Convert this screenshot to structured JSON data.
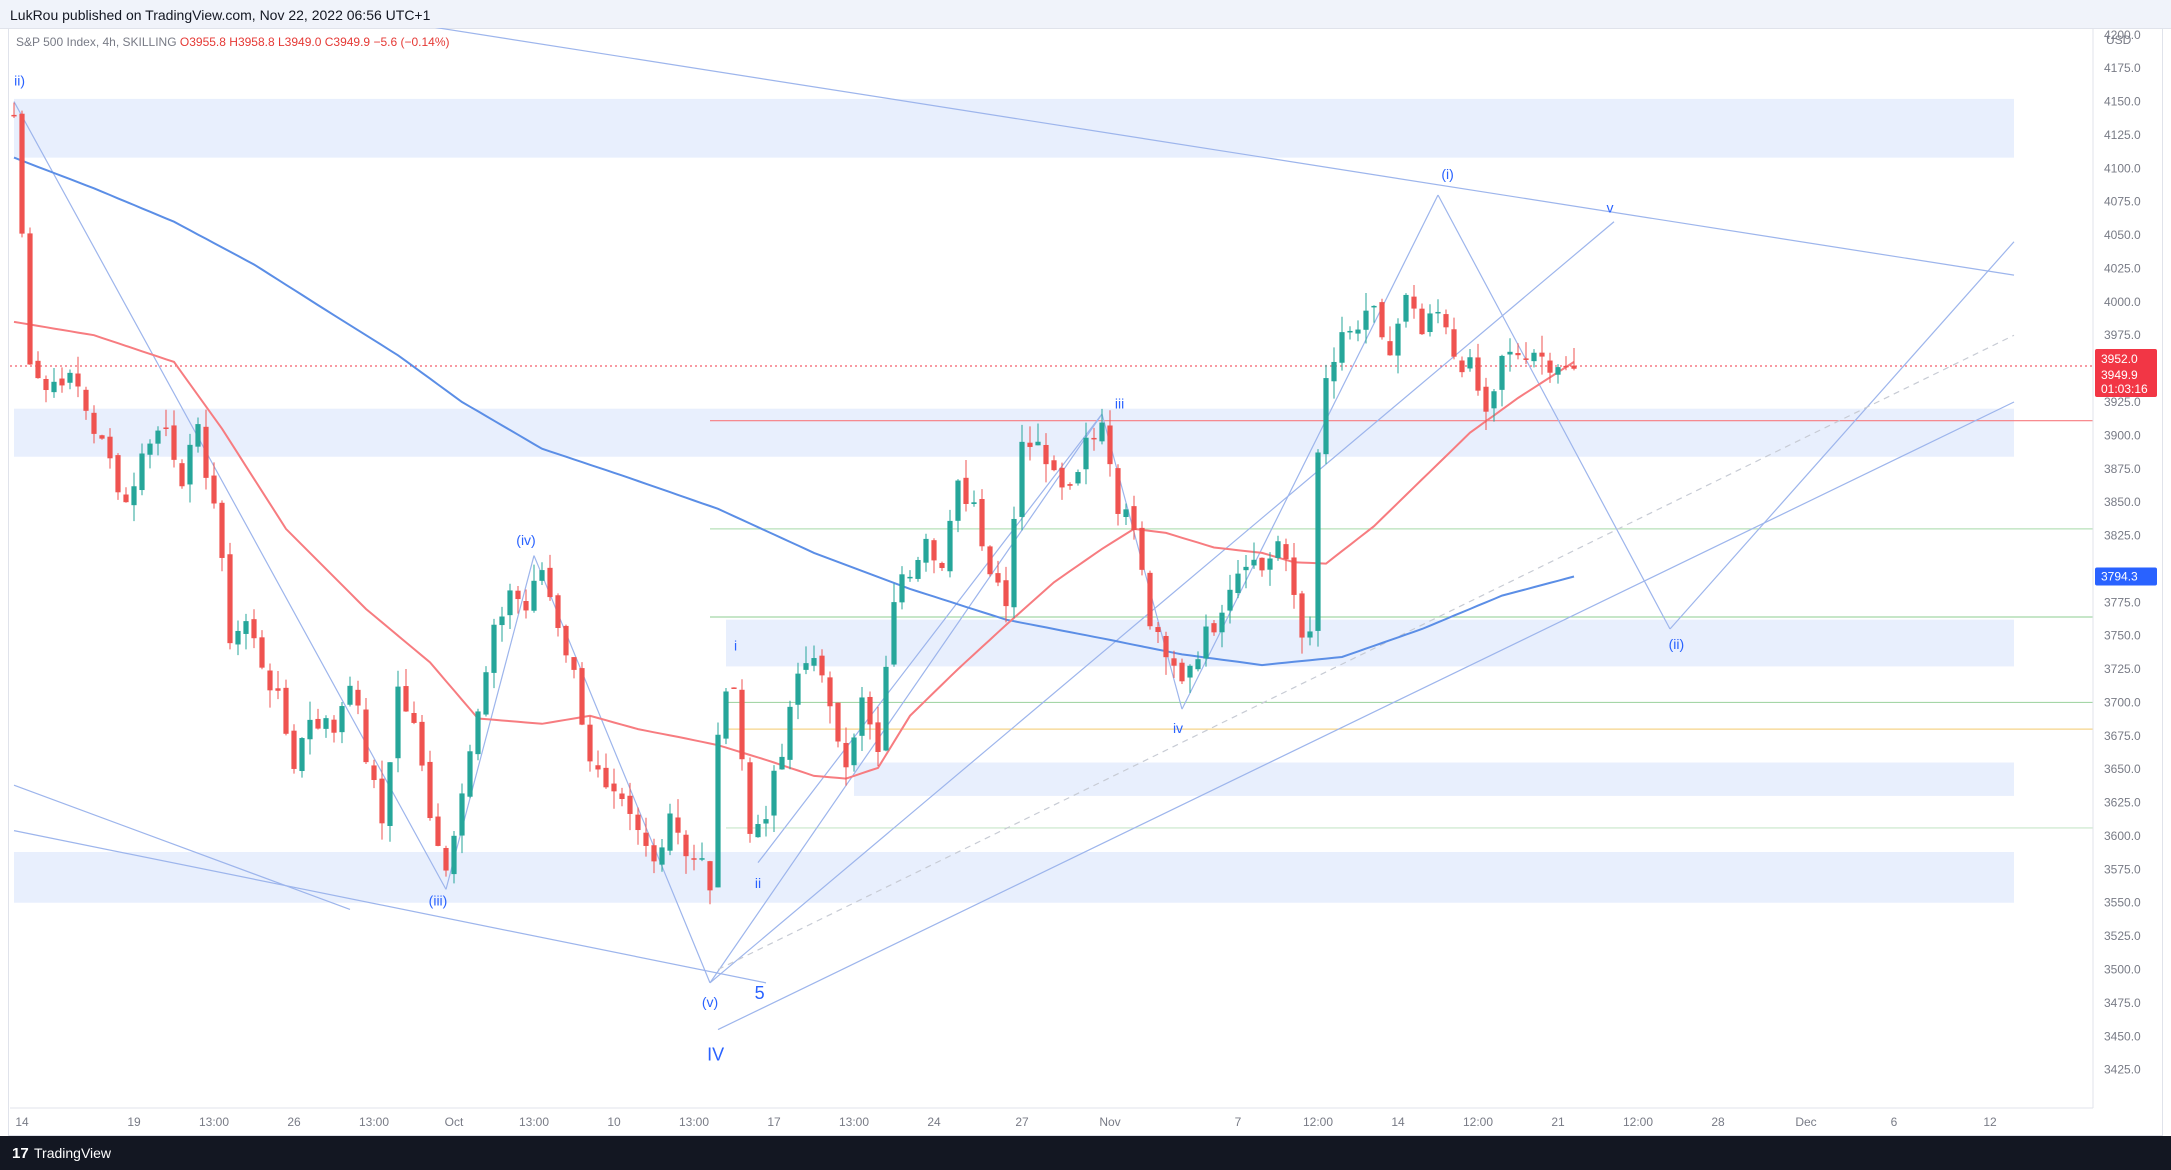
{
  "header": {
    "publisher": "LukRou published on TradingView.com, Nov 22, 2022 06:56 UTC+1"
  },
  "legend": {
    "symbol": "S&P 500 Index, 4h, SKILLING",
    "open": "O3955.8",
    "high": "H3958.8",
    "low": "L3949.0",
    "close": "C3949.9",
    "change": "−5.6 (−0.14%)"
  },
  "footer": {
    "logo_glyph": "17",
    "brand": "TradingView"
  },
  "colors": {
    "up": "#26a69a",
    "down": "#ef5350",
    "ema_fast": "#f77c80",
    "ema_slow": "#5b8ee6",
    "zone": "#e8effd",
    "lines": "#9db5ec",
    "labels": "#2962ff",
    "price_tag": "#f23645",
    "ma_tag": "#2962ff"
  },
  "chart_data": {
    "type": "candlestick",
    "title": "",
    "currency": "USD",
    "ylim": [
      3415,
      4245
    ],
    "y_ticks": [
      "4200.0",
      "4175.0",
      "4150.0",
      "4125.0",
      "4100.0",
      "4075.0",
      "4050.0",
      "4025.0",
      "4000.0",
      "3975.0",
      "3925.0",
      "3900.0",
      "3875.0",
      "3850.0",
      "3825.0",
      "3775.0",
      "3750.0",
      "3725.0",
      "3700.0",
      "3675.0",
      "3650.0",
      "3625.0",
      "3600.0",
      "3575.0",
      "3550.0",
      "3525.0",
      "3500.0",
      "3475.0",
      "3450.0",
      "3425.0"
    ],
    "x_ticks": [
      {
        "label": "14",
        "i": 1
      },
      {
        "label": "19",
        "i": 15
      },
      {
        "label": "13:00",
        "i": 25
      },
      {
        "label": "26",
        "i": 35
      },
      {
        "label": "13:00",
        "i": 45
      },
      {
        "label": "Oct",
        "i": 55
      },
      {
        "label": "13:00",
        "i": 65
      },
      {
        "label": "10",
        "i": 75
      },
      {
        "label": "13:00",
        "i": 85
      },
      {
        "label": "17",
        "i": 95
      },
      {
        "label": "13:00",
        "i": 105
      },
      {
        "label": "24",
        "i": 115
      },
      {
        "label": "27",
        "i": 126
      },
      {
        "label": "Nov",
        "i": 137
      },
      {
        "label": "7",
        "i": 153
      },
      {
        "label": "12:00",
        "i": 163
      },
      {
        "label": "14",
        "i": 173
      },
      {
        "label": "12:00",
        "i": 183
      },
      {
        "label": "21",
        "i": 193
      },
      {
        "label": "12:00",
        "i": 203
      },
      {
        "label": "28",
        "i": 213
      },
      {
        "label": "Dec",
        "i": 224
      },
      {
        "label": "6",
        "i": 235
      },
      {
        "label": "12",
        "i": 247
      }
    ],
    "current_price": {
      "price": "3952.0",
      "close": "3949.9",
      "countdown": "01:03:16",
      "value": 3952
    },
    "ma_value": {
      "label": "3794.3",
      "value": 3794.3
    },
    "waypoints": [
      [
        0,
        4140
      ],
      [
        1,
        4050
      ],
      [
        2,
        3960
      ],
      [
        4,
        3935
      ],
      [
        6,
        3945
      ],
      [
        8,
        3935
      ],
      [
        10,
        3905
      ],
      [
        12,
        3880
      ],
      [
        14,
        3850
      ],
      [
        17,
        3900
      ],
      [
        19,
        3905
      ],
      [
        21,
        3870
      ],
      [
        23,
        3900
      ],
      [
        25,
        3850
      ],
      [
        27,
        3750
      ],
      [
        29,
        3760
      ],
      [
        31,
        3730
      ],
      [
        33,
        3700
      ],
      [
        35,
        3655
      ],
      [
        37,
        3690
      ],
      [
        40,
        3680
      ],
      [
        42,
        3720
      ],
      [
        44,
        3660
      ],
      [
        46,
        3610
      ],
      [
        48,
        3710
      ],
      [
        50,
        3680
      ],
      [
        52,
        3620
      ],
      [
        54,
        3575
      ],
      [
        56,
        3640
      ],
      [
        58,
        3690
      ],
      [
        60,
        3750
      ],
      [
        62,
        3785
      ],
      [
        64,
        3770
      ],
      [
        66,
        3800
      ],
      [
        68,
        3760
      ],
      [
        70,
        3720
      ],
      [
        72,
        3660
      ],
      [
        74,
        3630
      ],
      [
        76,
        3620
      ],
      [
        78,
        3600
      ],
      [
        80,
        3580
      ],
      [
        82,
        3620
      ],
      [
        84,
        3590
      ],
      [
        86,
        3580
      ],
      [
        87,
        3555
      ],
      [
        88,
        3680
      ],
      [
        90,
        3720
      ],
      [
        92,
        3600
      ],
      [
        94,
        3620
      ],
      [
        96,
        3660
      ],
      [
        98,
        3720
      ],
      [
        100,
        3740
      ],
      [
        102,
        3690
      ],
      [
        104,
        3660
      ],
      [
        106,
        3700
      ],
      [
        108,
        3660
      ],
      [
        110,
        3780
      ],
      [
        112,
        3800
      ],
      [
        114,
        3830
      ],
      [
        116,
        3800
      ],
      [
        118,
        3860
      ],
      [
        120,
        3850
      ],
      [
        122,
        3800
      ],
      [
        124,
        3780
      ],
      [
        126,
        3900
      ],
      [
        128,
        3890
      ],
      [
        130,
        3880
      ],
      [
        132,
        3860
      ],
      [
        134,
        3900
      ],
      [
        136,
        3910
      ],
      [
        138,
        3850
      ],
      [
        140,
        3830
      ],
      [
        142,
        3760
      ],
      [
        144,
        3730
      ],
      [
        146,
        3720
      ],
      [
        148,
        3740
      ],
      [
        150,
        3760
      ],
      [
        152,
        3790
      ],
      [
        154,
        3810
      ],
      [
        156,
        3800
      ],
      [
        158,
        3820
      ],
      [
        160,
        3780
      ],
      [
        161,
        3750
      ],
      [
        162,
        3760
      ],
      [
        163,
        3880
      ],
      [
        164,
        3940
      ],
      [
        166,
        3970
      ],
      [
        168,
        3980
      ],
      [
        170,
        3990
      ],
      [
        172,
        3960
      ],
      [
        174,
        4000
      ],
      [
        176,
        3975
      ],
      [
        178,
        3990
      ],
      [
        180,
        3960
      ],
      [
        182,
        3950
      ],
      [
        184,
        3915
      ],
      [
        186,
        3955
      ],
      [
        188,
        3960
      ],
      [
        190,
        3955
      ],
      [
        192,
        3955
      ],
      [
        194,
        3952
      ],
      [
        195,
        3950
      ]
    ],
    "ema_fast": [
      [
        0,
        3985
      ],
      [
        10,
        3975
      ],
      [
        20,
        3955
      ],
      [
        26,
        3905
      ],
      [
        34,
        3830
      ],
      [
        44,
        3770
      ],
      [
        52,
        3730
      ],
      [
        58,
        3688
      ],
      [
        66,
        3684
      ],
      [
        72,
        3690
      ],
      [
        78,
        3680
      ],
      [
        84,
        3673
      ],
      [
        88,
        3668
      ],
      [
        94,
        3657
      ],
      [
        100,
        3645
      ],
      [
        104,
        3643
      ],
      [
        108,
        3651
      ],
      [
        112,
        3690
      ],
      [
        118,
        3725
      ],
      [
        124,
        3758
      ],
      [
        130,
        3790
      ],
      [
        136,
        3815
      ],
      [
        140,
        3830
      ],
      [
        144,
        3827
      ],
      [
        150,
        3816
      ],
      [
        156,
        3812
      ],
      [
        160,
        3805
      ],
      [
        164,
        3804
      ],
      [
        170,
        3832
      ],
      [
        176,
        3867
      ],
      [
        182,
        3902
      ],
      [
        188,
        3928
      ],
      [
        195,
        3955
      ]
    ],
    "ema_slow": [
      [
        0,
        4108
      ],
      [
        10,
        4085
      ],
      [
        20,
        4060
      ],
      [
        30,
        4028
      ],
      [
        40,
        3990
      ],
      [
        48,
        3960
      ],
      [
        56,
        3925
      ],
      [
        66,
        3890
      ],
      [
        76,
        3870
      ],
      [
        88,
        3845
      ],
      [
        100,
        3812
      ],
      [
        112,
        3785
      ],
      [
        124,
        3762
      ],
      [
        136,
        3748
      ],
      [
        146,
        3736
      ],
      [
        156,
        3728
      ],
      [
        166,
        3734
      ],
      [
        176,
        3755
      ],
      [
        186,
        3780
      ],
      [
        195,
        3794.3
      ]
    ],
    "zones": [
      [
        0,
        250,
        4108,
        4152
      ],
      [
        0,
        250,
        3884,
        3920
      ],
      [
        89,
        250,
        3727,
        3762
      ],
      [
        105,
        250,
        3630,
        3655
      ],
      [
        0,
        250,
        3550,
        3588
      ]
    ],
    "hlines": [
      {
        "i0": 87,
        "price": 3911,
        "color": "#f77c80"
      },
      {
        "i0": 87,
        "price": 3830,
        "color": "#b7e0b9"
      },
      {
        "i0": 87,
        "price": 3764,
        "color": "#a5d6a7"
      },
      {
        "i0": 89,
        "price": 3700,
        "color": "#a5d6a7"
      },
      {
        "i0": 89,
        "price": 3680,
        "color": "#f5d48a"
      },
      {
        "i0": 89,
        "price": 3606,
        "color": "#c8e6c9"
      }
    ],
    "lines": [
      [
        0,
        4255,
        250,
        4020
      ],
      [
        0,
        3638,
        42,
        3545
      ],
      [
        0,
        3604,
        94,
        3490
      ],
      [
        88,
        3455,
        250,
        3925
      ],
      [
        87,
        3490,
        200,
        4060
      ],
      [
        87,
        3490,
        136,
        3916
      ],
      [
        136,
        3916,
        146,
        3695
      ],
      [
        146,
        3695,
        178,
        4080
      ],
      [
        178,
        4080,
        207,
        3755
      ],
      [
        207,
        3755,
        250,
        4045
      ],
      [
        0,
        4150,
        54,
        3560
      ],
      [
        54,
        3560,
        65,
        3810
      ],
      [
        65,
        3810,
        87,
        3490
      ],
      [
        93,
        3580,
        136,
        3916
      ]
    ],
    "dashed_line": [
      88,
      3500,
      250,
      3975
    ],
    "wave_labels": [
      {
        "t": "ii)",
        "i": 0.7,
        "p": 4162,
        "size": 14
      },
      {
        "t": "(iii)",
        "i": 53,
        "p": 3548,
        "size": 14
      },
      {
        "t": "(iv)",
        "i": 64,
        "p": 3818,
        "size": 14
      },
      {
        "t": "(v)",
        "i": 87,
        "p": 3472,
        "size": 14
      },
      {
        "t": "IV",
        "i": 87.7,
        "p": 3432,
        "size": 18
      },
      {
        "t": "5",
        "i": 93.2,
        "p": 3478,
        "size": 18
      },
      {
        "t": "i",
        "i": 90.2,
        "p": 3739,
        "size": 14
      },
      {
        "t": "ii",
        "i": 93,
        "p": 3561,
        "size": 14
      },
      {
        "t": "iii",
        "i": 138.2,
        "p": 3920,
        "size": 14
      },
      {
        "t": "iv",
        "i": 145.5,
        "p": 3677,
        "size": 14
      },
      {
        "t": "(i)",
        "i": 179.2,
        "p": 4092,
        "size": 14
      },
      {
        "t": "v",
        "i": 199.5,
        "p": 4067,
        "size": 14
      },
      {
        "t": "(ii)",
        "i": 207.8,
        "p": 3740,
        "size": 14
      }
    ]
  }
}
